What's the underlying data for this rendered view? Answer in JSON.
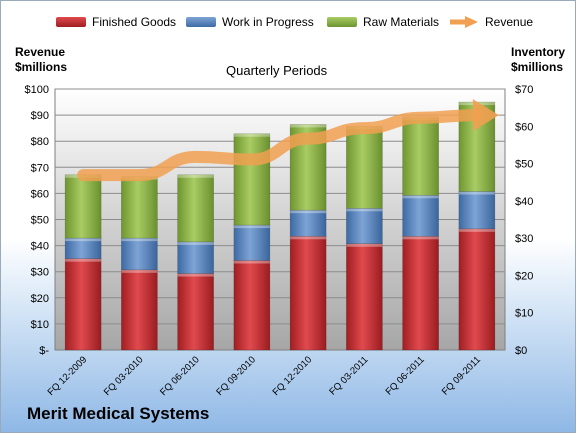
{
  "company": "Merit Medical Systems",
  "colors": {
    "finished": "#c0282c",
    "wip": "#4f81bd",
    "raw": "#8db43e",
    "revenue": "#f0a050"
  },
  "chart_data": {
    "type": "bar",
    "stacked": true,
    "title": "",
    "subtitle": "Quarterly Periods",
    "left_axis_label": "Revenue $millions",
    "right_axis_label": "Inventory $millions",
    "categories": [
      "FQ 12-2009",
      "FQ 03-2010",
      "FQ 06-2010",
      "FQ 09-2010",
      "FQ 12-2010",
      "FQ 03-2011",
      "FQ 06-2011",
      "FQ 09-2011"
    ],
    "left_ticks": [
      "$-",
      "$10",
      "$20",
      "$30",
      "$40",
      "$50",
      "$60",
      "$70",
      "$80",
      "$90",
      "$100"
    ],
    "right_ticks": [
      "$0",
      "$10",
      "$20",
      "$30",
      "$40",
      "$50",
      "$60",
      "$70"
    ],
    "left_ylim": [
      0,
      100
    ],
    "right_ylim": [
      0,
      70
    ],
    "legend_position": "top",
    "legend": [
      "Finished Goods",
      "Work in Progress",
      "Raw Materials",
      "Revenue"
    ],
    "series": [
      {
        "name": "Finished Goods",
        "axis": "right",
        "values": [
          24.5,
          21.5,
          20.5,
          24.0,
          30.5,
          28.5,
          30.5,
          32.5
        ]
      },
      {
        "name": "Work in Progress",
        "axis": "right",
        "values": [
          5.5,
          8.5,
          8.5,
          9.5,
          7.0,
          9.5,
          11.0,
          10.0
        ]
      },
      {
        "name": "Raw Materials",
        "axis": "right",
        "values": [
          17.0,
          16.5,
          18.0,
          24.5,
          23.0,
          22.0,
          21.0,
          24.0
        ]
      },
      {
        "name": "Revenue",
        "type": "line",
        "axis": "left",
        "values": [
          67,
          67,
          74,
          73,
          81,
          85,
          89,
          90
        ]
      }
    ]
  }
}
